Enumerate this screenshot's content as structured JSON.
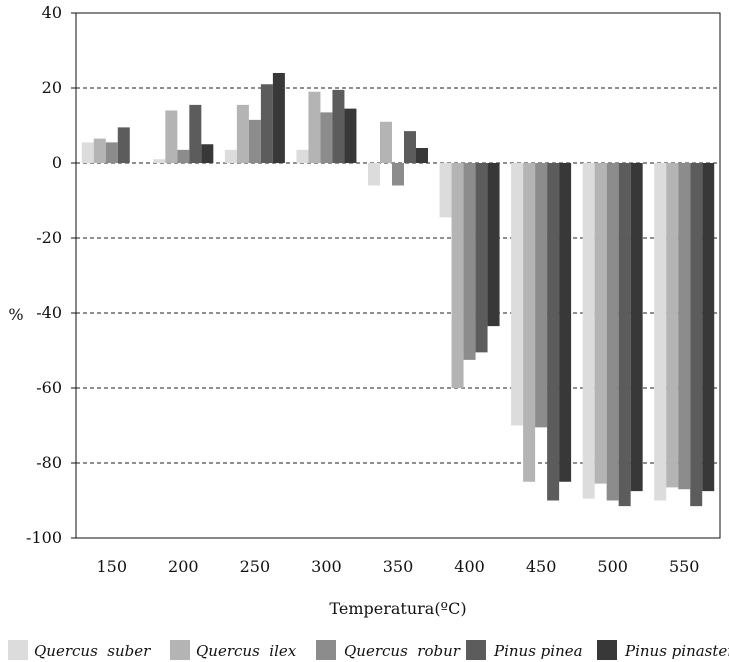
{
  "chart_data": {
    "type": "bar",
    "categories": [
      "150",
      "200",
      "250",
      "300",
      "350",
      "400",
      "450",
      "500",
      "550"
    ],
    "series": [
      {
        "name": "Quercus  suber",
        "color": "#dcdcdc",
        "values": [
          5.5,
          1,
          3.5,
          3.5,
          -6,
          -14.5,
          -70,
          -89.5,
          -90
        ]
      },
      {
        "name": "Quercus  ilex",
        "color": "#b4b4b4",
        "values": [
          6.5,
          14,
          15.5,
          19,
          11,
          -60,
          -85,
          -85.5,
          -86.5
        ]
      },
      {
        "name": "Quercus  robur",
        "color": "#8c8c8c",
        "values": [
          5.5,
          3.5,
          11.5,
          13.5,
          -6,
          -52.5,
          -70.5,
          -90,
          -87
        ]
      },
      {
        "name": "Pinus pinea",
        "color": "#5c5c5c",
        "values": [
          9.5,
          15.5,
          21,
          19.5,
          8.5,
          -50.5,
          -90,
          -91.5,
          -91.5
        ]
      },
      {
        "name": "Pinus pinaster",
        "color": "#383838",
        "values": [
          0,
          5,
          24,
          14.5,
          4,
          -43.5,
          -85,
          -87.5,
          -87.5
        ]
      }
    ],
    "xlabel": "Temperatura(ºC)",
    "ylabel": "%",
    "ylim": [
      -100,
      40
    ],
    "yticks": [
      "40",
      "20",
      "0",
      "-20",
      "-40",
      "-60",
      "-80",
      "-100"
    ],
    "ytick_values": [
      40,
      20,
      0,
      -20,
      -40,
      -60,
      -80,
      -100
    ],
    "grid_values": [
      20,
      0,
      -20,
      -40,
      -60,
      -80
    ],
    "grid": "horizontal-dashed",
    "legend": "bottom"
  }
}
